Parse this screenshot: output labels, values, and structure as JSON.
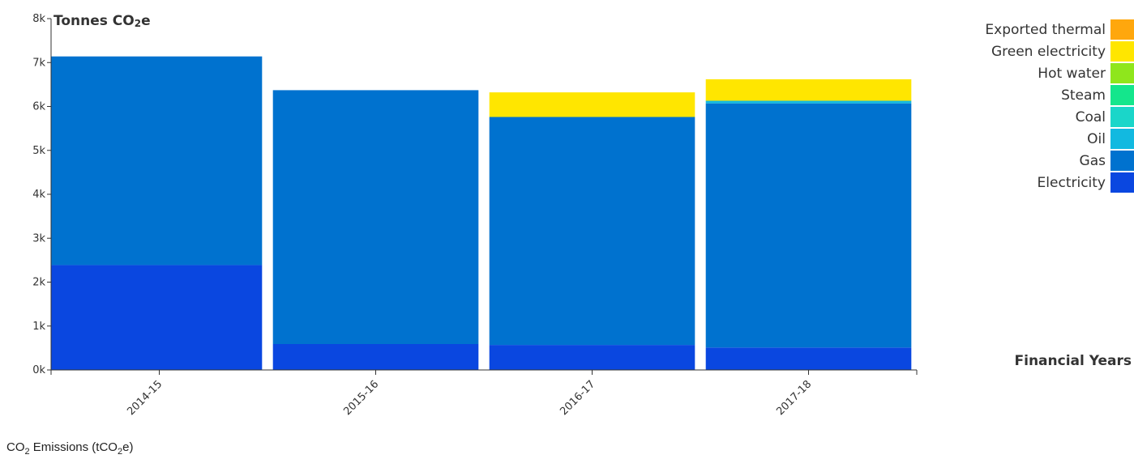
{
  "chart_data": {
    "type": "bar",
    "stacked": true,
    "ylabel_main": "Tonnes CO",
    "ylabel_sub": "2",
    "ylabel_tail": "e",
    "xlabel": "Financial Years",
    "ylim": [
      0,
      8000
    ],
    "yticks": [
      0,
      1000,
      2000,
      3000,
      4000,
      5000,
      6000,
      7000,
      8000
    ],
    "ytick_labels": [
      "0k",
      "1k",
      "2k",
      "3k",
      "4k",
      "5k",
      "6k",
      "7k",
      "8k"
    ],
    "categories": [
      "2014-15",
      "2015-16",
      "2016-17",
      "2017-18"
    ],
    "series": [
      {
        "name": "Electricity",
        "color": "#0a47e0",
        "values": [
          2390,
          590,
          570,
          510
        ]
      },
      {
        "name": "Gas",
        "color": "#0072cf",
        "values": [
          4750,
          5780,
          5190,
          5560
        ]
      },
      {
        "name": "Oil",
        "color": "#12b9e0",
        "values": [
          0,
          0,
          0,
          60
        ]
      },
      {
        "name": "Coal",
        "color": "#1ad6c9",
        "values": [
          0,
          0,
          0,
          0
        ]
      },
      {
        "name": "Steam",
        "color": "#14e68c",
        "values": [
          0,
          0,
          0,
          0
        ]
      },
      {
        "name": "Hot water",
        "color": "#8fe61c",
        "values": [
          0,
          0,
          0,
          0
        ]
      },
      {
        "name": "Green electricity",
        "color": "#ffe600",
        "values": [
          0,
          0,
          560,
          490
        ]
      },
      {
        "name": "Exported thermal",
        "color": "#ffa70d",
        "values": [
          0,
          0,
          0,
          0
        ]
      }
    ],
    "legend_order": [
      "Exported thermal",
      "Green electricity",
      "Hot water",
      "Steam",
      "Coal",
      "Oil",
      "Gas",
      "Electricity"
    ],
    "legend_position": "top-right"
  },
  "caption": {
    "pre": "CO",
    "sub1": "2",
    "mid": " Emissions (tCO",
    "sub2": "2",
    "post": "e)"
  }
}
